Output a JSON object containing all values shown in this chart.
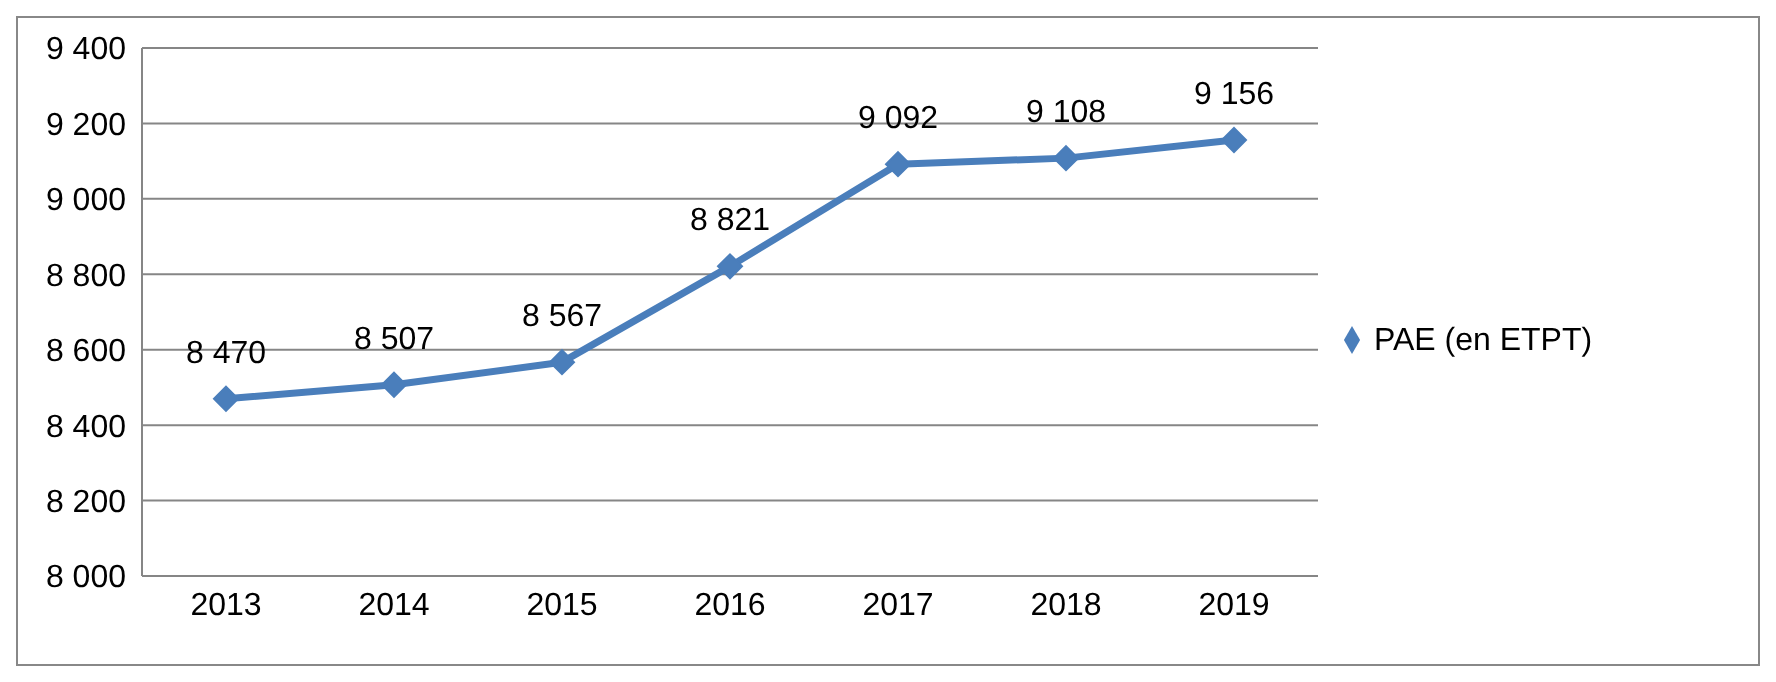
{
  "chart_data": {
    "type": "line",
    "categories": [
      "2013",
      "2014",
      "2015",
      "2016",
      "2017",
      "2018",
      "2019"
    ],
    "series": [
      {
        "name": "PAE (en ETPT)",
        "color": "#4a7ebb",
        "values": [
          8470,
          8507,
          8567,
          8821,
          9092,
          9108,
          9156
        ],
        "value_labels": [
          "8 470",
          "8 507",
          "8 567",
          "8 821",
          "9 092",
          "9 108",
          "9 156"
        ]
      }
    ],
    "ylim": [
      8000,
      9400
    ],
    "yticks": [
      {
        "value": 8000,
        "label": "8 000"
      },
      {
        "value": 8200,
        "label": "8 200"
      },
      {
        "value": 8400,
        "label": "8 400"
      },
      {
        "value": 8600,
        "label": "8 600"
      },
      {
        "value": 8800,
        "label": "8 800"
      },
      {
        "value": 9000,
        "label": "9 000"
      },
      {
        "value": 9200,
        "label": "9 200"
      },
      {
        "value": 9400,
        "label": "9 400"
      }
    ],
    "grid": "y",
    "legend": "right",
    "marker": "diamond",
    "line_style": "solid"
  }
}
